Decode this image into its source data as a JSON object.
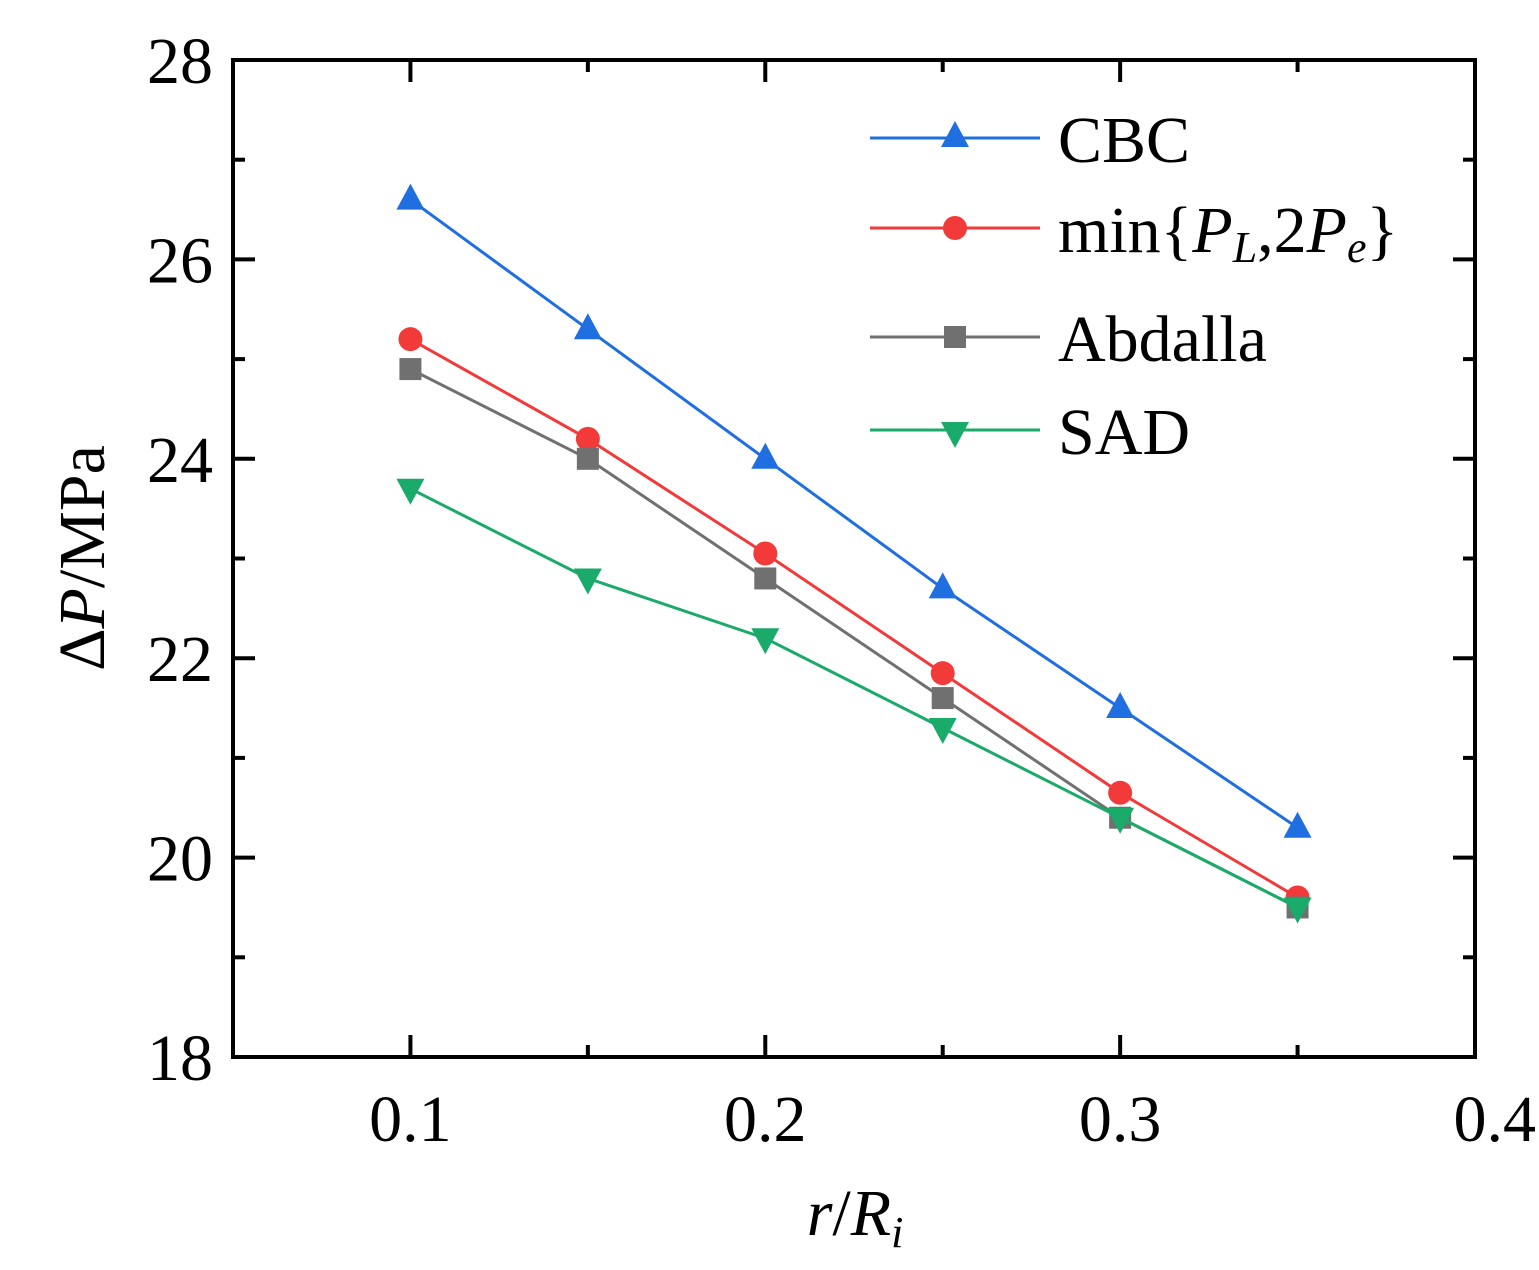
{
  "chart_data": {
    "type": "line",
    "x": [
      0.1,
      0.15,
      0.2,
      0.25,
      0.3,
      0.35
    ],
    "xlim": [
      0.05,
      0.4
    ],
    "ylim": [
      18,
      28
    ],
    "xticks": [
      0.1,
      0.2,
      0.3,
      0.4
    ],
    "xtick_labels": [
      "0.1",
      "0.2",
      "0.3",
      "0.4"
    ],
    "xminor": [
      0.15,
      0.25,
      0.35
    ],
    "yticks": [
      18,
      20,
      22,
      24,
      26,
      28
    ],
    "ytick_labels": [
      "18",
      "20",
      "22",
      "24",
      "26",
      "28"
    ],
    "yminor": [
      19,
      21,
      23,
      25,
      27
    ],
    "xlabel": {
      "r": "r",
      "slash": "/",
      "R": "R",
      "sub": "i"
    },
    "ylabel": {
      "delta": "Δ",
      "P": "P",
      "unit": "/MPa"
    },
    "legend_position": "top-right",
    "series": [
      {
        "name": "CBC",
        "color": "#1f6fe0",
        "marker": "triangle-up",
        "values": [
          26.6,
          25.3,
          24.0,
          22.7,
          21.5,
          20.3
        ]
      },
      {
        "name": "min{PL,2Pe}",
        "color": "#f23a3a",
        "marker": "circle",
        "values": [
          25.2,
          24.2,
          23.05,
          21.85,
          20.65,
          19.6
        ]
      },
      {
        "name": "Abdalla",
        "color": "#707070",
        "marker": "square",
        "values": [
          24.9,
          24.0,
          22.8,
          21.6,
          20.4,
          19.5
        ]
      },
      {
        "name": "SAD",
        "color": "#1aaa6a",
        "marker": "triangle-down",
        "values": [
          23.7,
          22.8,
          22.2,
          21.3,
          20.4,
          19.5
        ]
      }
    ],
    "legend_label_parts": {
      "min_prefix": "min{",
      "P1": "P",
      "sub1": "L",
      "comma_two": ",2",
      "P2": "P",
      "sub2": "e",
      "close": "}"
    }
  }
}
